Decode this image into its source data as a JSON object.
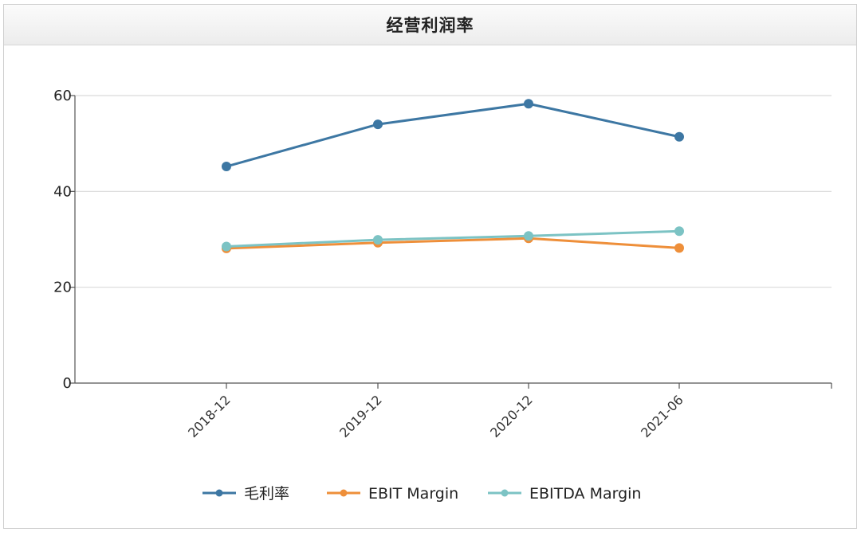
{
  "panel": {
    "title": "经营利润率"
  },
  "chart_data": {
    "type": "line",
    "title": "经营利润率",
    "xlabel": "",
    "ylabel": "",
    "categories": [
      "2018-12",
      "2019-12",
      "2020-12",
      "2021-06"
    ],
    "ylim": [
      0,
      60
    ],
    "yticks": [
      0,
      20,
      40,
      60
    ],
    "grid": true,
    "legend": "bottom",
    "series": [
      {
        "name": "毛利率",
        "color": "#3d77a3",
        "values": [
          45.2,
          54.0,
          58.3,
          51.4
        ]
      },
      {
        "name": "EBIT Margin",
        "color": "#ee8f3a",
        "values": [
          28.1,
          29.3,
          30.2,
          28.2
        ]
      },
      {
        "name": "EBITDA Margin",
        "color": "#7cc3c4",
        "values": [
          28.5,
          29.9,
          30.7,
          31.7
        ]
      }
    ]
  }
}
